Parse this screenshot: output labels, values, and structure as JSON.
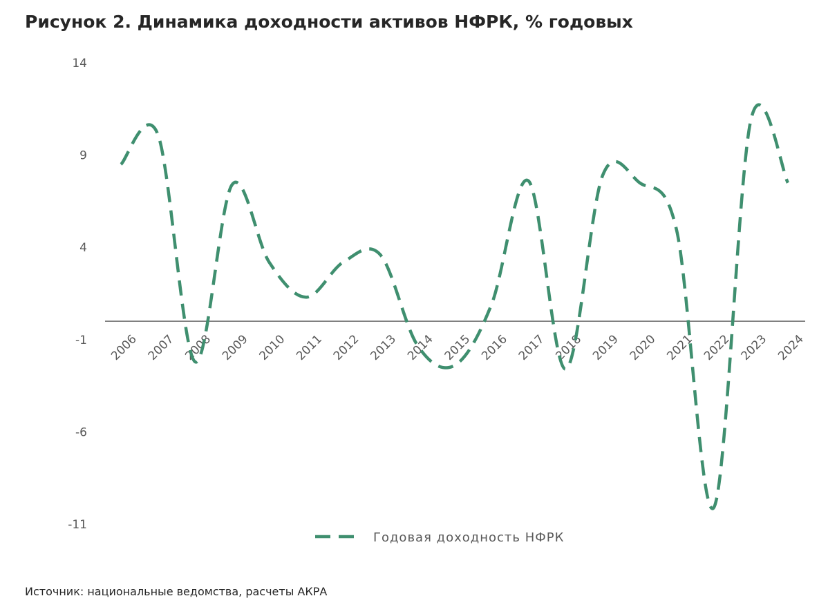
{
  "chart_data": {
    "type": "line",
    "title": "Рисунок 2. Динамика доходности активов НФРК, % годовых",
    "categories": [
      "2006",
      "2007",
      "2008",
      "2009",
      "2010",
      "2011",
      "2012",
      "2013",
      "2014",
      "2015",
      "2016",
      "2017",
      "2018",
      "2019",
      "2020",
      "2021",
      "2022",
      "2023",
      "2024"
    ],
    "series": [
      {
        "name": "Годовая доходность  НФРК",
        "color": "#3f8f6f",
        "values": [
          8.5,
          10.1,
          -2.2,
          7.4,
          3.2,
          1.3,
          3.2,
          3.6,
          -1.3,
          -2.4,
          0.9,
          7.6,
          -2.6,
          7.9,
          7.5,
          4.9,
          -10.1,
          10.9,
          7.5
        ]
      }
    ],
    "ylim": [
      -11,
      14
    ],
    "yticks": [
      -11,
      -6,
      -1,
      4,
      9,
      14
    ],
    "legend": "bottom",
    "source": "Источник: национальные ведомства, расчеты АКРА"
  }
}
